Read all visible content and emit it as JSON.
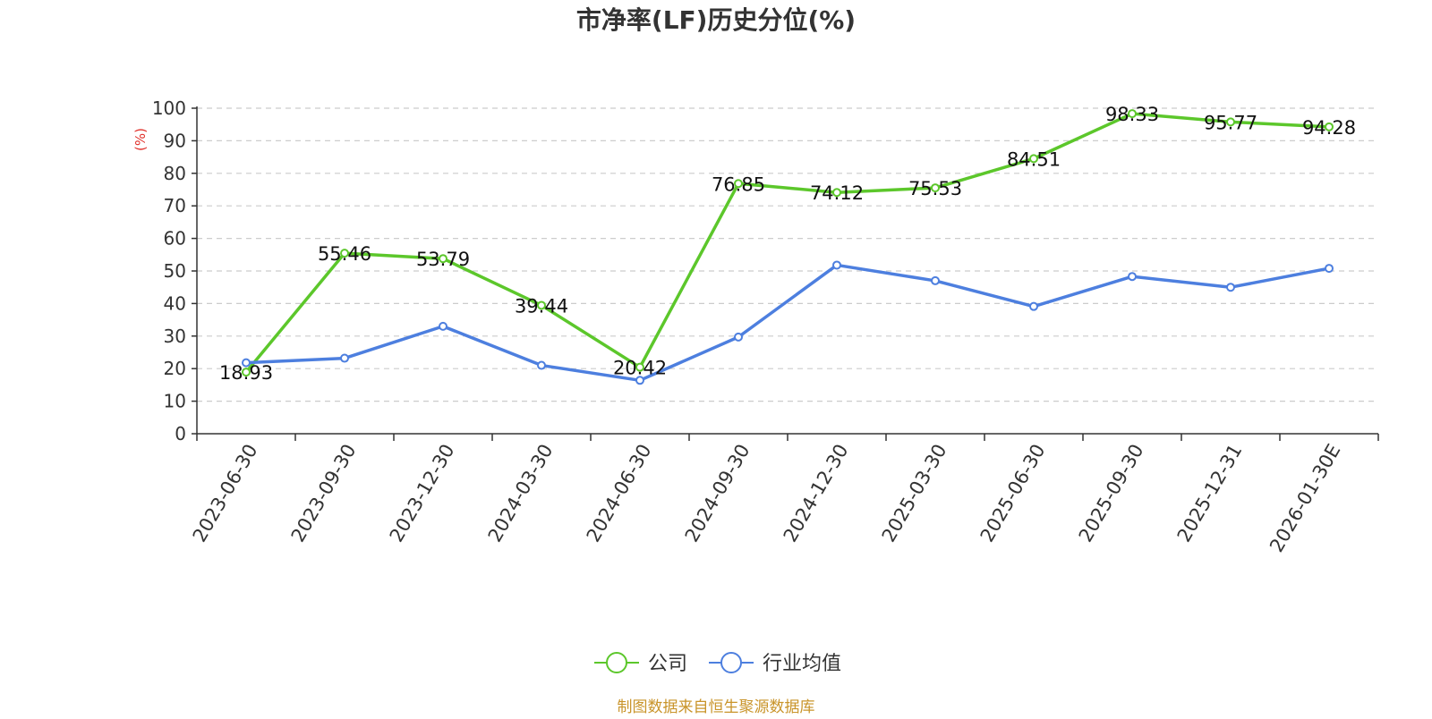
{
  "chart_data": {
    "type": "line",
    "title": "市净率(LF)历史分位(%)",
    "y_unit": "(%)",
    "ylim": [
      0,
      100
    ],
    "yticks": [
      0,
      10,
      20,
      30,
      40,
      50,
      60,
      70,
      80,
      90,
      100
    ],
    "grid": true,
    "legend_position": "bottom-center",
    "categories": [
      "2023-06-30",
      "2023-09-30",
      "2023-12-30",
      "2024-03-30",
      "2024-06-30",
      "2024-09-30",
      "2024-12-30",
      "2025-03-30",
      "2025-06-30",
      "2025-09-30",
      "2025-12-31",
      "2026-01-30E"
    ],
    "series": [
      {
        "name": "公司",
        "color": "#5cc72b",
        "values": [
          18.93,
          55.46,
          53.79,
          39.44,
          20.42,
          76.85,
          74.12,
          75.53,
          84.51,
          98.33,
          95.77,
          94.28
        ],
        "show_labels": true
      },
      {
        "name": "行业均值",
        "color": "#4d7fdf",
        "values": [
          21.8,
          23.2,
          33.0,
          21.0,
          16.4,
          29.7,
          51.8,
          47.0,
          39.1,
          48.3,
          45.0,
          50.8
        ],
        "show_labels": false
      }
    ],
    "source": "制图数据来自恒生聚源数据库"
  },
  "colors": {
    "title": "#333333",
    "unit": "#e0312b",
    "source": "#c9942a",
    "axis": "#333333",
    "grid": "#cccccc"
  }
}
